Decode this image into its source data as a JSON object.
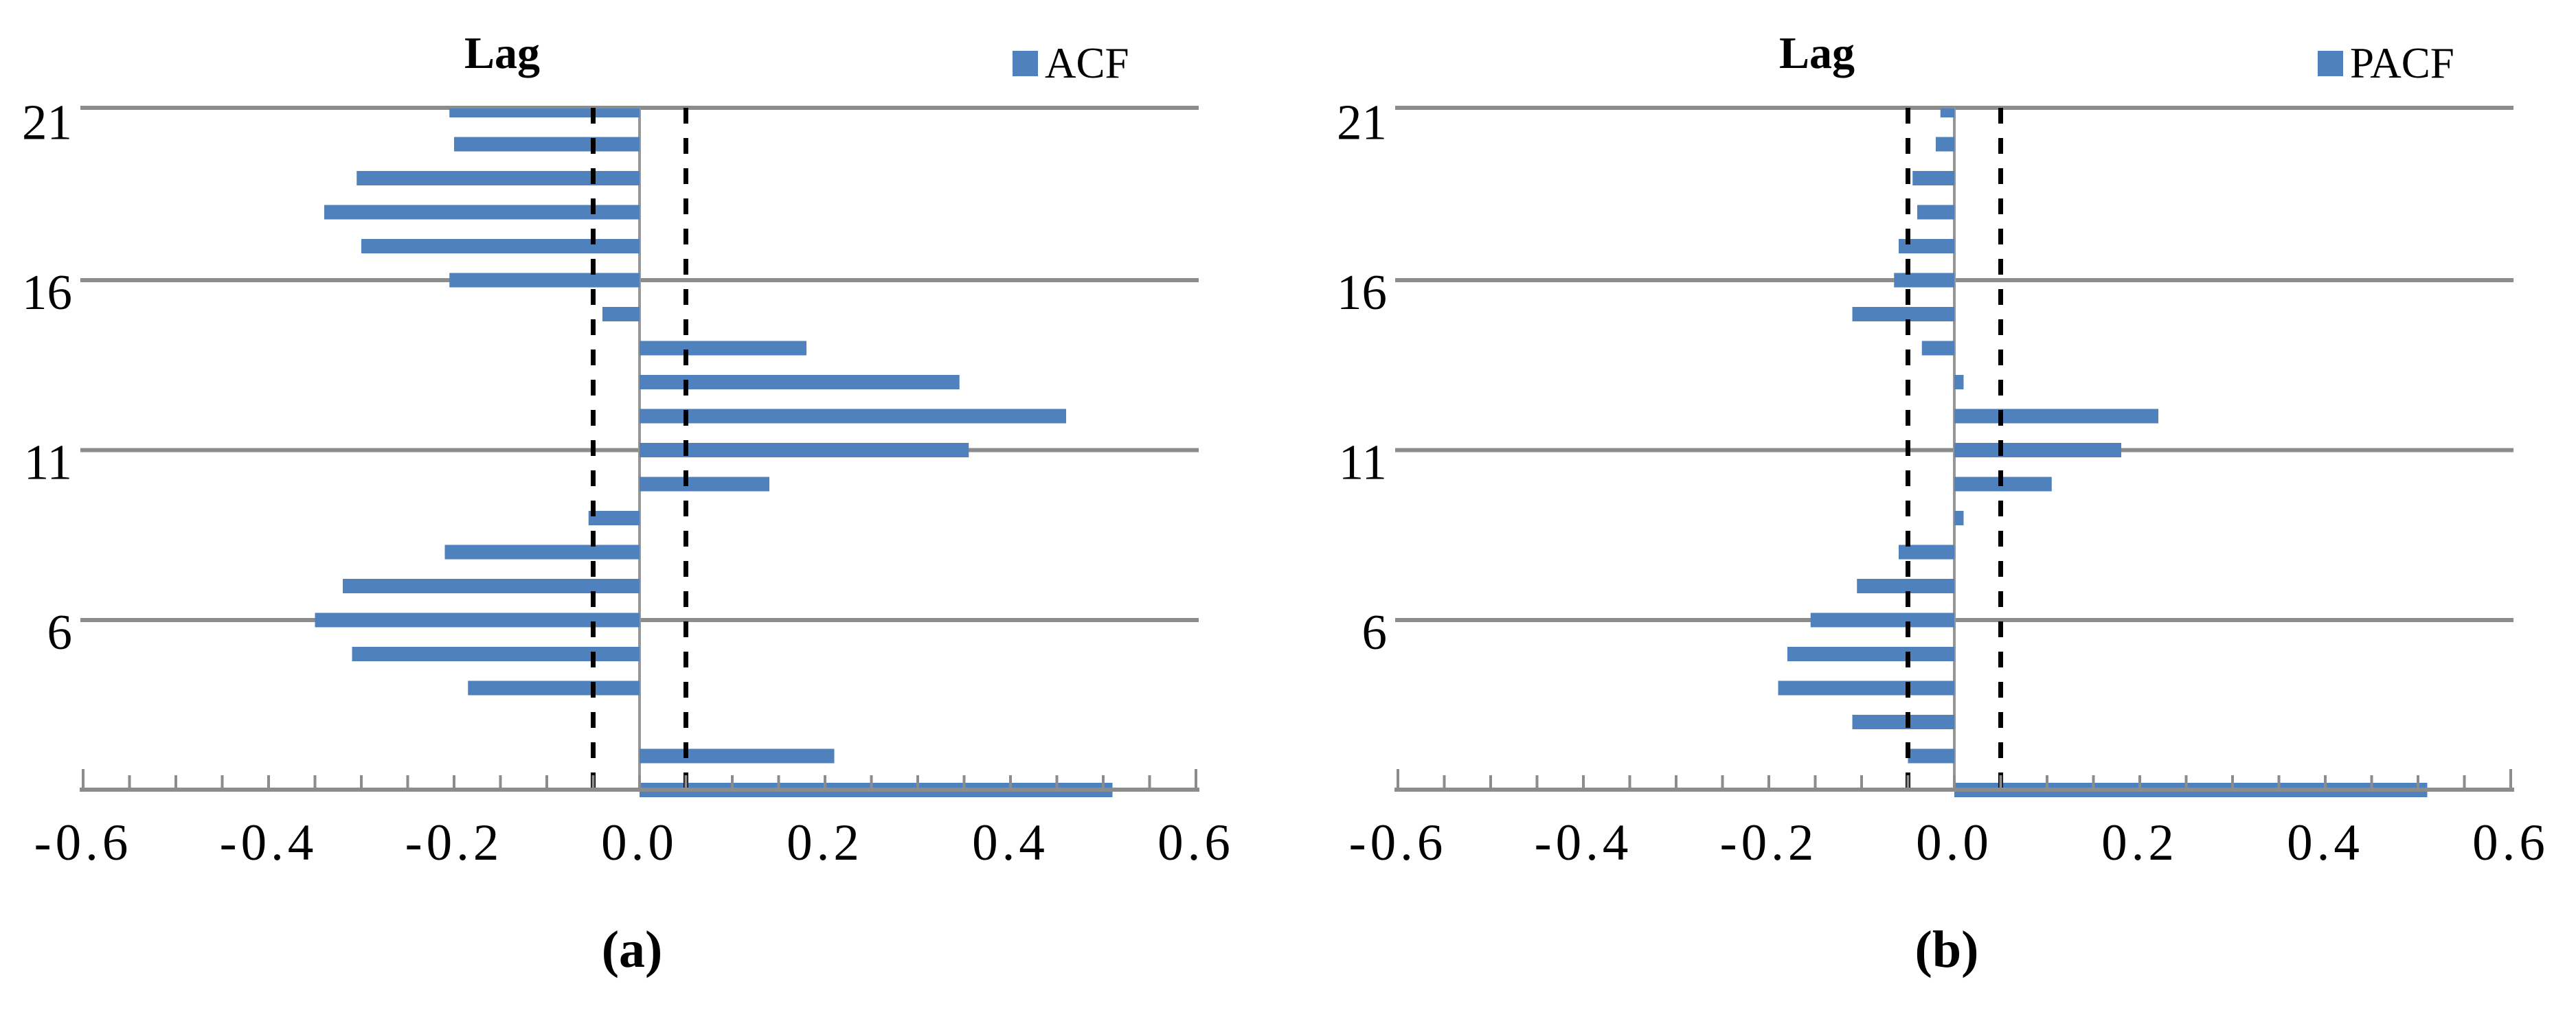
{
  "figure": {
    "background": "#ffffff",
    "description": "Autocorrelation (ACF) and partial autocorrelation (PACF) horizontal bar correlograms by lag"
  },
  "styles": {
    "bar_color": "#4f81bd",
    "grid_color": "#8c8c8c",
    "axis_color": "#8c8c8c",
    "zero_line_color": "#969696",
    "dashed_line_color": "#000000",
    "text_color": "#000000"
  },
  "chart_data": [
    {
      "panel": "a",
      "type": "bar",
      "orientation": "horizontal",
      "title": "Lag",
      "legend_label": "ACF",
      "caption": "(a)",
      "legend_position": "top-right",
      "categories": [
        1,
        2,
        3,
        4,
        5,
        6,
        7,
        8,
        9,
        10,
        11,
        12,
        13,
        14,
        15,
        16,
        17,
        18,
        19,
        20,
        21
      ],
      "values": [
        0.51,
        0.21,
        0.0,
        -0.185,
        -0.31,
        -0.35,
        -0.32,
        -0.21,
        -0.055,
        0.14,
        0.355,
        0.46,
        0.345,
        0.18,
        -0.04,
        -0.205,
        -0.3,
        -0.34,
        -0.305,
        -0.2,
        -0.205
      ],
      "xlim": [
        -0.6,
        0.6
      ],
      "x_ticks": [
        -0.6,
        -0.4,
        -0.2,
        0.0,
        0.2,
        0.4,
        0.6
      ],
      "x_tick_labels": [
        "-0.6",
        "-0.4",
        "-0.2",
        "0.0",
        "0.2",
        "0.4",
        "0.6"
      ],
      "minor_tick_step": 0.05,
      "labeled_lags": [
        21,
        16,
        11,
        6
      ],
      "confidence_bounds": [
        -0.05,
        0.05
      ],
      "grid": "category-gridlines-at-labeled-lags"
    },
    {
      "panel": "b",
      "type": "bar",
      "orientation": "horizontal",
      "title": "Lag",
      "legend_label": "PACF",
      "caption": "(b)",
      "legend_position": "top-right",
      "categories": [
        1,
        2,
        3,
        4,
        5,
        6,
        7,
        8,
        9,
        10,
        11,
        12,
        13,
        14,
        15,
        16,
        17,
        18,
        19,
        20,
        21
      ],
      "values": [
        0.51,
        -0.05,
        -0.11,
        -0.19,
        -0.18,
        -0.155,
        -0.105,
        -0.06,
        0.01,
        0.105,
        0.18,
        0.22,
        0.01,
        -0.035,
        -0.11,
        -0.065,
        -0.06,
        -0.04,
        -0.045,
        -0.02,
        -0.015
      ],
      "xlim": [
        -0.6,
        0.6
      ],
      "x_ticks": [
        -0.6,
        -0.4,
        -0.2,
        0.0,
        0.2,
        0.4,
        0.6
      ],
      "x_tick_labels": [
        "-0.6",
        "-0.4",
        "-0.2",
        "0.0",
        "0.2",
        "0.4",
        "0.6"
      ],
      "minor_tick_step": 0.05,
      "labeled_lags": [
        21,
        16,
        11,
        6
      ],
      "confidence_bounds": [
        -0.05,
        0.05
      ],
      "grid": "category-gridlines-at-labeled-lags"
    }
  ]
}
